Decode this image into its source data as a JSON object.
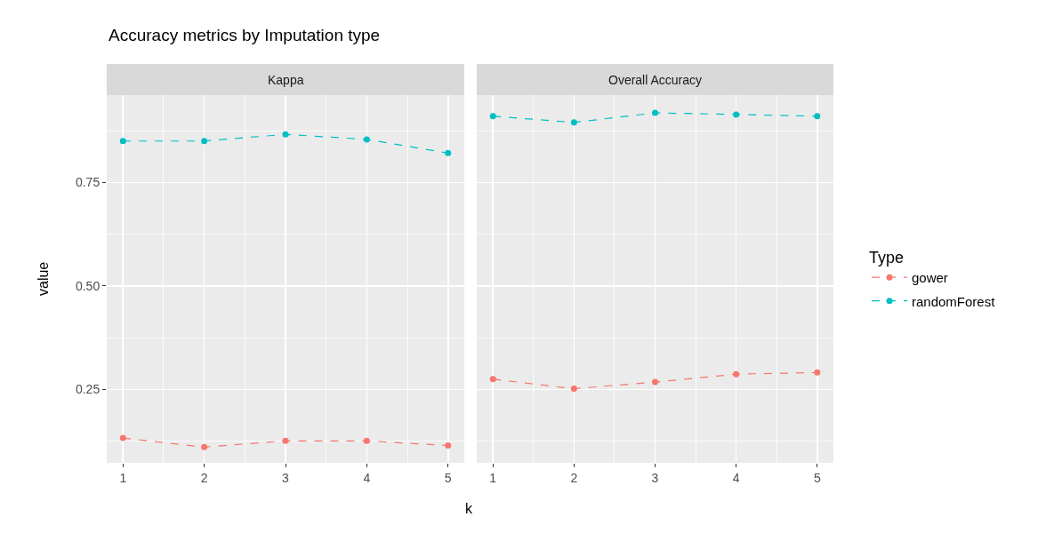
{
  "chart_data": [
    {
      "type": "line",
      "title": "Accuracy metrics by Imputation type",
      "subtitle": "Kappa",
      "xlabel": "k",
      "ylabel": "value",
      "legend_title": "Type",
      "x": [
        1,
        2,
        3,
        4,
        5
      ],
      "series": [
        {
          "name": "gower",
          "color": "#f8766d",
          "values": [
            0.133,
            0.111,
            0.126,
            0.126,
            0.115
          ]
        },
        {
          "name": "randomForest",
          "color": "#00bfc4",
          "values": [
            0.85,
            0.85,
            0.866,
            0.854,
            0.821
          ]
        }
      ],
      "xlim": [
        0.8,
        5.2
      ],
      "xticks": [
        1,
        2,
        3,
        4,
        5
      ],
      "ylim": [
        0.073,
        0.961
      ],
      "yticks": [
        0.25,
        {
          "value": 0.5,
          "label": "0.50"
        },
        0.75
      ],
      "grid": true,
      "legend": "right",
      "marker": "circle",
      "line_style": "dashed"
    },
    {
      "type": "line",
      "subtitle": "Overall Accuracy",
      "x": [
        1,
        2,
        3,
        4,
        5
      ],
      "series": [
        {
          "color": "#f8766d",
          "values": [
            0.275,
            0.252,
            0.268,
            0.287,
            0.291
          ]
        },
        {
          "color": "#00bfc4",
          "values": [
            0.91,
            0.895,
            0.918,
            0.914,
            0.91
          ]
        }
      ],
      "xlim": [
        0.8,
        5.2
      ],
      "xticks": [
        1,
        2,
        3,
        4,
        5
      ],
      "ylim": [
        0.073,
        0.961
      ],
      "yticks": [
        0.25,
        0.5,
        0.75
      ],
      "tick_labels": "x",
      "grid": true,
      "marker": "circle",
      "line_style": "dashed"
    }
  ]
}
